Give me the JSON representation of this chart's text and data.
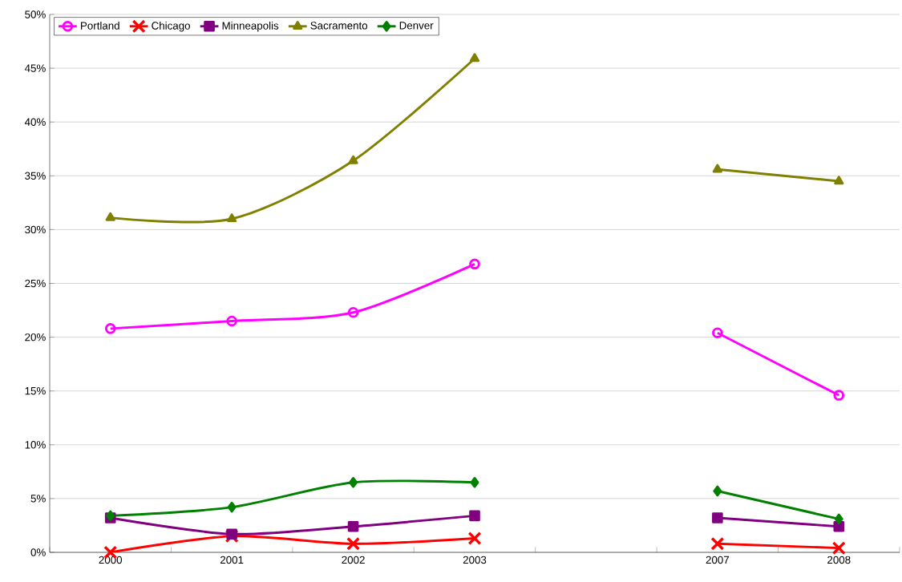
{
  "chart_data": {
    "type": "line",
    "categories": [
      "2000",
      "2001",
      "2002",
      "2003",
      null,
      "2007",
      "2008"
    ],
    "series": [
      {
        "name": "Portland",
        "color": "#ff00ff",
        "marker": "circle",
        "values": [
          20.8,
          21.5,
          22.3,
          26.8,
          null,
          20.4,
          14.6
        ]
      },
      {
        "name": "Chicago",
        "color": "#ff0000",
        "marker": "cross",
        "values": [
          0.0,
          1.5,
          0.8,
          1.3,
          null,
          0.8,
          0.4
        ]
      },
      {
        "name": "Minneapolis",
        "color": "#800080",
        "marker": "square",
        "values": [
          3.2,
          1.7,
          2.4,
          3.4,
          null,
          3.2,
          2.4
        ]
      },
      {
        "name": "Sacramento",
        "color": "#808000",
        "marker": "triangle",
        "values": [
          31.1,
          31.0,
          36.4,
          45.9,
          null,
          35.6,
          34.5
        ]
      },
      {
        "name": "Denver",
        "color": "#008000",
        "marker": "diamond",
        "values": [
          3.4,
          4.2,
          6.5,
          6.5,
          null,
          5.7,
          3.1
        ]
      }
    ],
    "ylim": [
      0,
      50
    ],
    "yticks": [
      {
        "value": 0,
        "label": "0%"
      },
      {
        "value": 5,
        "label": "5%"
      },
      {
        "value": 10,
        "label": "10%"
      },
      {
        "value": 15,
        "label": "15%"
      },
      {
        "value": 20,
        "label": "20%"
      },
      {
        "value": 25,
        "label": "25%"
      },
      {
        "value": 30,
        "label": "30%"
      },
      {
        "value": 35,
        "label": "35%"
      },
      {
        "value": 40,
        "label": "40%"
      },
      {
        "value": 45,
        "label": "45%"
      },
      {
        "value": 50,
        "label": "50%"
      }
    ],
    "grid": "y",
    "legend": "top left",
    "line_style": "solid"
  }
}
